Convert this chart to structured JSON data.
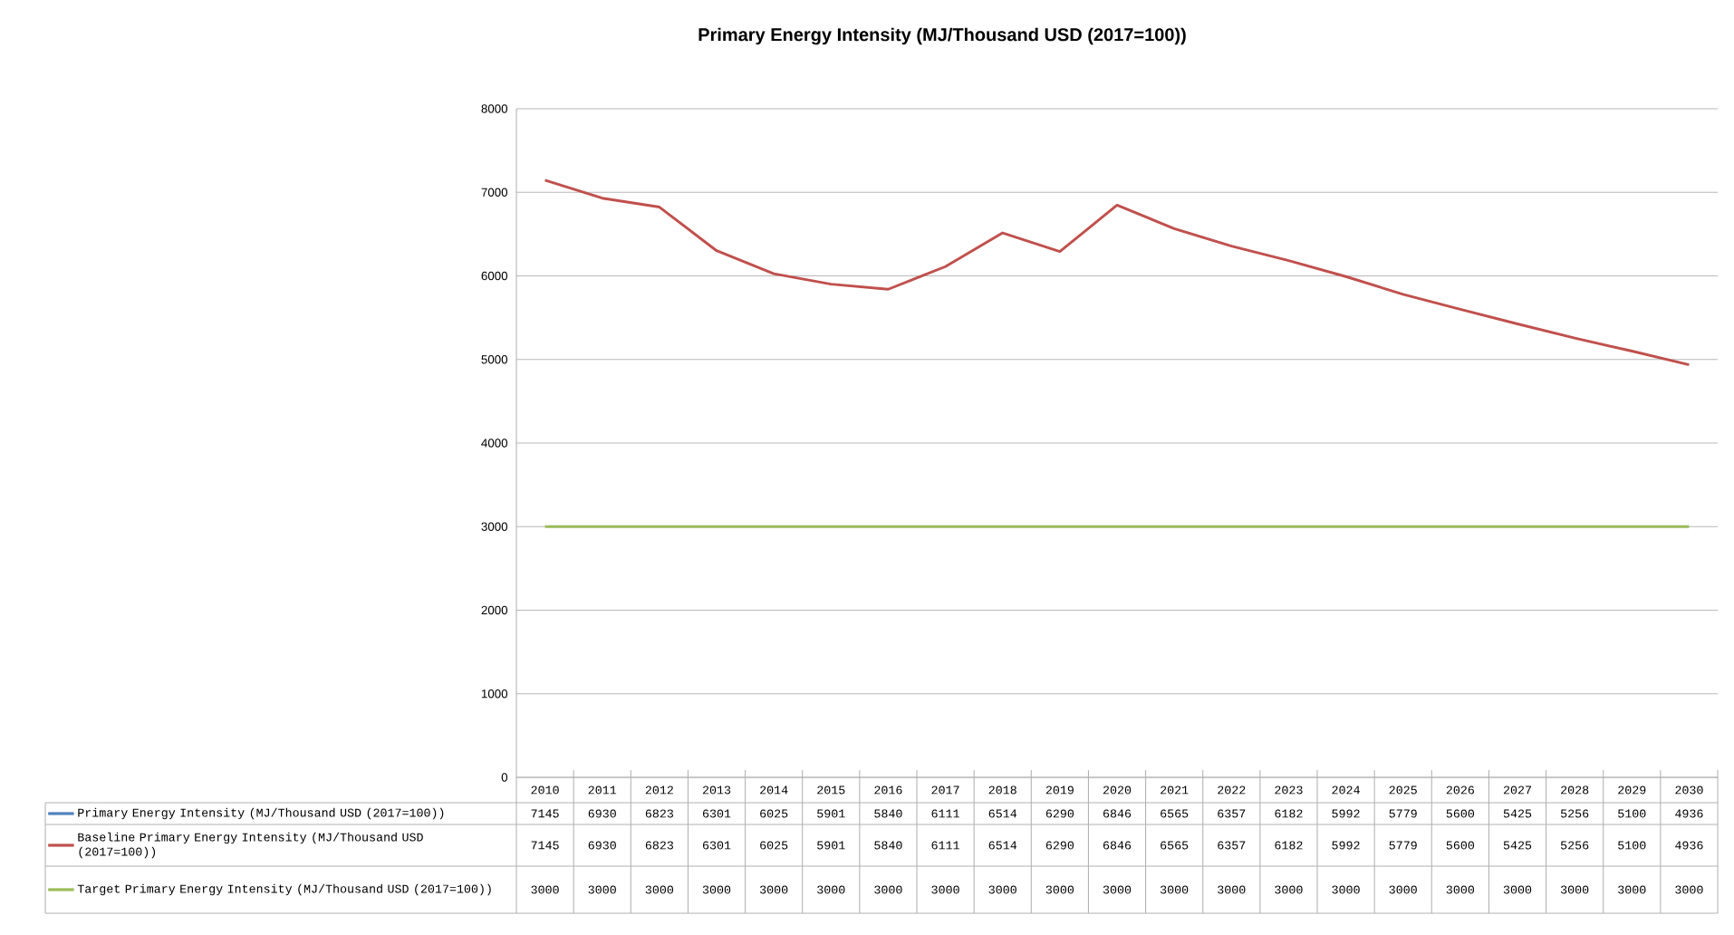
{
  "chart_data": {
    "type": "line",
    "title": "Primary Energy Intensity (MJ/Thousand USD (2017=100))",
    "categories": [
      "2010",
      "2011",
      "2012",
      "2013",
      "2014",
      "2015",
      "2016",
      "2017",
      "2018",
      "2019",
      "2020",
      "2021",
      "2022",
      "2023",
      "2024",
      "2025",
      "2026",
      "2027",
      "2028",
      "2029",
      "2030"
    ],
    "series": [
      {
        "name": "Primary Energy Intensity (MJ/Thousand USD (2017=100))",
        "color": "#4f81bd",
        "values": [
          null,
          null,
          null,
          null,
          null,
          null,
          null,
          null,
          null,
          null,
          null,
          null,
          null,
          null,
          null,
          null,
          null,
          null,
          null,
          null,
          null
        ],
        "value_labels": [
          "7145",
          "6930",
          "6823",
          "6301",
          "6025",
          "5901",
          "5840",
          "6111",
          "6514",
          "6290",
          "6846",
          "6565",
          "6357",
          "6182",
          "5992",
          "5779",
          "5600",
          "5425",
          "5256",
          "5100",
          "4936"
        ]
      },
      {
        "name": "Baseline Primary Energy Intensity (MJ/Thousand USD (2017=100))",
        "color": "#c0504d",
        "values": [
          7145,
          6930,
          6823,
          6301,
          6025,
          5901,
          5840,
          6111,
          6514,
          6290,
          6846,
          6565,
          6357,
          6182,
          5992,
          5779,
          5600,
          5425,
          5256,
          5100,
          4936
        ],
        "value_labels": [
          "7145",
          "6930",
          "6823",
          "6301",
          "6025",
          "5901",
          "5840",
          "6111",
          "6514",
          "6290",
          "6846",
          "6565",
          "6357",
          "6182",
          "5992",
          "5779",
          "5600",
          "5425",
          "5256",
          "5100",
          "4936"
        ]
      },
      {
        "name": "Target Primary Energy Intensity (MJ/Thousand USD (2017=100))",
        "color": "#9bbb59",
        "values": [
          3000,
          3000,
          3000,
          3000,
          3000,
          3000,
          3000,
          3000,
          3000,
          3000,
          3000,
          3000,
          3000,
          3000,
          3000,
          3000,
          3000,
          3000,
          3000,
          3000,
          3000
        ],
        "value_labels": [
          "3000",
          "3000",
          "3000",
          "3000",
          "3000",
          "3000",
          "3000",
          "3000",
          "3000",
          "3000",
          "3000",
          "3000",
          "3000",
          "3000",
          "3000",
          "3000",
          "3000",
          "3000",
          "3000",
          "3000",
          "3000"
        ]
      }
    ],
    "ylim": [
      0,
      8000
    ],
    "yticks": [
      0,
      1000,
      2000,
      3000,
      4000,
      5000,
      6000,
      7000,
      8000
    ],
    "grid": "y",
    "legend": "bottom"
  }
}
